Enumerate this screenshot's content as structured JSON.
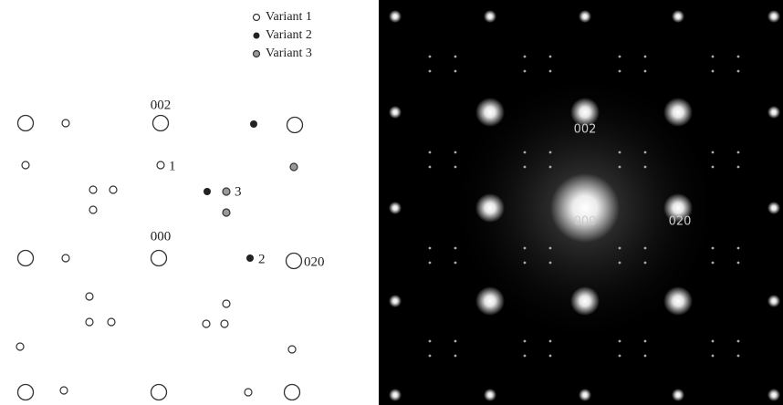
{
  "legend": [
    "Variant 1",
    "Variant 2",
    "Variant 3"
  ],
  "schematic_labels": [
    "002",
    "000",
    "020",
    "1",
    "2",
    "3"
  ],
  "photo_labels": [
    "002",
    "000",
    "020"
  ]
}
